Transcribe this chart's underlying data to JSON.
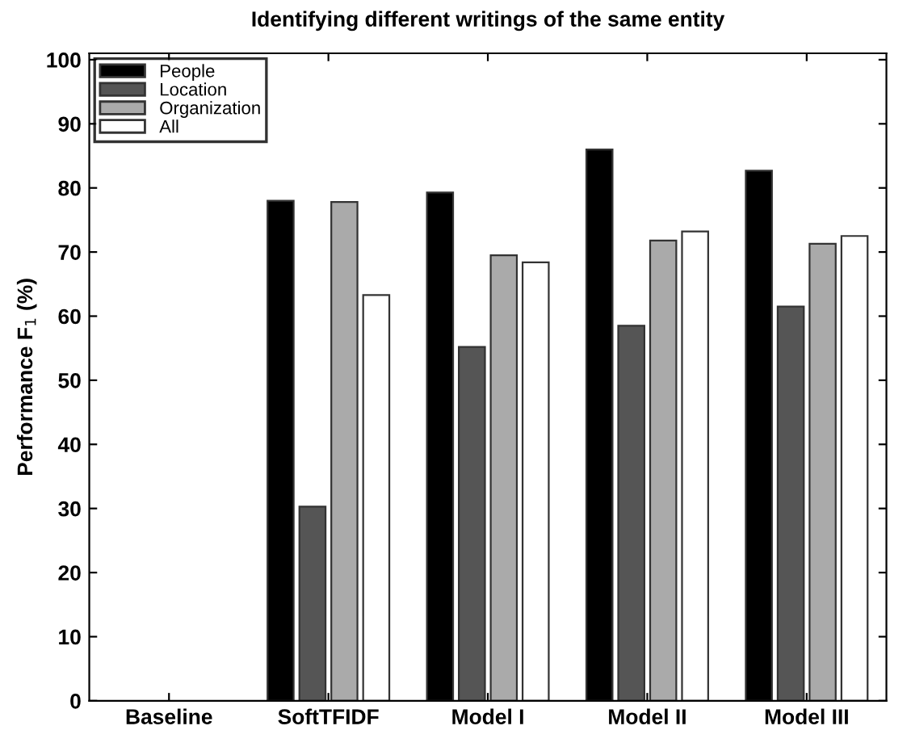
{
  "chart_data": {
    "type": "bar",
    "title": "Identifying different writings of the same entity",
    "ylabel": "Performance F$_{1}$ (%)",
    "categories": [
      "Baseline",
      "SoftTFIDF",
      "Model I",
      "Model II",
      "Model III"
    ],
    "series": [
      {
        "name": "People",
        "color": "#000000",
        "values": [
          null,
          78,
          79.3,
          86,
          82.7
        ]
      },
      {
        "name": "Location",
        "color": "#555555",
        "values": [
          null,
          30.3,
          55.2,
          58.5,
          61.5
        ]
      },
      {
        "name": "Organization",
        "color": "#aaaaaa",
        "values": [
          null,
          77.8,
          69.5,
          71.8,
          71.3
        ]
      },
      {
        "name": "All",
        "color": "#ffffff",
        "values": [
          null,
          63.3,
          68.4,
          73.2,
          72.5
        ]
      }
    ],
    "ylim": [
      0,
      101
    ],
    "yticks": [
      0,
      10,
      20,
      30,
      40,
      50,
      60,
      70,
      80,
      90,
      100
    ],
    "grid": false,
    "legend": "top left"
  }
}
